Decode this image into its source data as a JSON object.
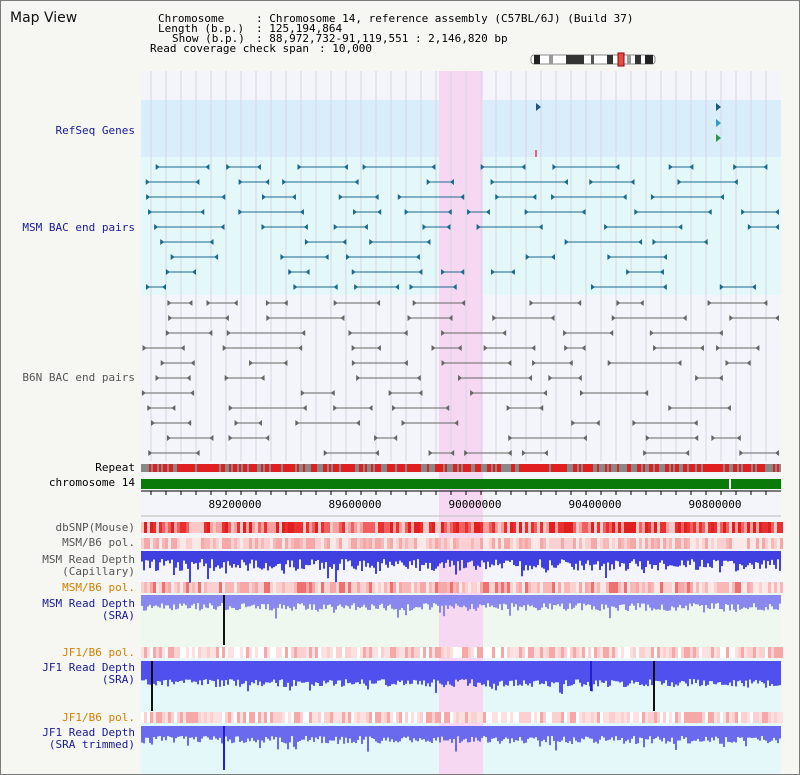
{
  "title": "Map View",
  "info": {
    "chromosome_label": "Chromosome",
    "chromosome_value": ": Chromosome 14, reference assembly (C57BL/6J) (Build 37)",
    "length_label": "Length (b.p.)",
    "length_value": ": 125,194,864",
    "show_label": "Show (b.p.)",
    "show_value": ": 88,972,732-91,119,551 : 2,146,820 bp",
    "coverage_label": "Read coverage check span",
    "coverage_value": ": 10,000"
  },
  "tracks": {
    "refseq": "RefSeq Genes",
    "msm_bac": "MSM BAC end pairs",
    "b6n_bac": "B6N BAC end pairs",
    "repeat": "Repeat",
    "chromosome": "chromosome 14",
    "dbsnp": "dbSNP(Mouse)",
    "msm_b6_pol_1": "MSM/B6 pol.",
    "msm_read_depth_cap_1": "MSM Read Depth",
    "msm_read_depth_cap_2": "(Capillary)",
    "msm_b6_pol_2": "MSM/B6 pol.",
    "msm_read_depth_sra_1": "MSM Read Depth",
    "msm_read_depth_sra_2": "(SRA)",
    "jf1_b6_pol_1": "JF1/B6 pol.",
    "jf1_read_depth_sra_1": "JF1 Read Depth",
    "jf1_read_depth_sra_2": "(SRA)",
    "jf1_b6_pol_2": "JF1/B6 pol.",
    "jf1_read_depth_trim_1": "JF1 Read Depth",
    "jf1_read_depth_trim_2": "(SRA trimmed)"
  },
  "axis_ticks": [
    "89200000",
    "89600000",
    "90000000",
    "90400000",
    "90800000"
  ],
  "colors": {
    "refseq_band": "#d9eefa",
    "msm_band": "#e4f8fa",
    "highlight": "#f7d8f2",
    "repeat_red": "#e02020",
    "repeat_gray": "#888888",
    "chromosome_green": "#0a7a0a",
    "depth_blue": "#3a3aee",
    "msm_line": "#1a6a8a",
    "b6n_line": "#666666"
  }
}
